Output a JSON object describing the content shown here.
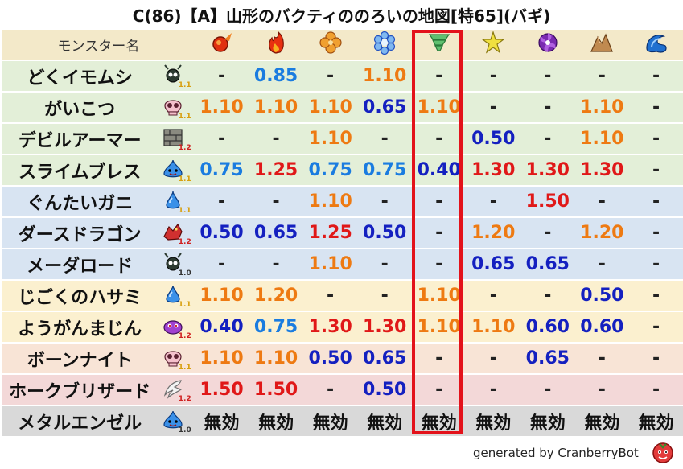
{
  "title": "C(86)【A】山形のバクティののろいの地図[特65](バギ)",
  "header": {
    "name_label": "モンスター名",
    "resistance_icons": [
      "fire-ball-icon",
      "flame-icon",
      "clover-explosion-icon",
      "ice-flower-icon",
      "tornado-icon",
      "lightning-star-icon",
      "darkness-pinwheel-icon",
      "earth-rock-icon",
      "water-wave-icon"
    ]
  },
  "colors": {
    "highlight": "#e3121b",
    "orange": "#ee7a12",
    "red": "#e01818",
    "navy": "#1420c0",
    "blue": "#1a7ce0"
  },
  "rows": [
    {
      "name": "どくイモムシ",
      "species_icon": "insect-icon",
      "level": "1.1",
      "level_color": "#d8a010",
      "bg": "#e3efd8",
      "values": [
        "-",
        "0.85",
        "-",
        "1.10",
        "-",
        "-",
        "-",
        "-",
        "-"
      ],
      "colors": [
        "dash",
        "blue",
        "dash",
        "orange",
        "dash",
        "dash",
        "dash",
        "dash",
        "dash"
      ]
    },
    {
      "name": "がいこつ",
      "species_icon": "skull-icon",
      "level": "1.1",
      "level_color": "#d8a010",
      "bg": "#e3efd8",
      "values": [
        "1.10",
        "1.10",
        "1.10",
        "0.65",
        "1.10",
        "-",
        "-",
        "1.10",
        "-"
      ],
      "colors": [
        "orange",
        "orange",
        "orange",
        "navy",
        "orange",
        "dash",
        "dash",
        "orange",
        "dash"
      ]
    },
    {
      "name": "デビルアーマー",
      "species_icon": "brick-icon",
      "level": "1.2",
      "level_color": "#d02020",
      "bg": "#e3efd8",
      "values": [
        "-",
        "-",
        "1.10",
        "-",
        "-",
        "0.50",
        "-",
        "1.10",
        "-"
      ],
      "colors": [
        "dash",
        "dash",
        "orange",
        "dash",
        "dash",
        "navy",
        "dash",
        "orange",
        "dash"
      ]
    },
    {
      "name": "スライムブレス",
      "species_icon": "slime-icon",
      "level": "1.1",
      "level_color": "#d8a010",
      "bg": "#e3efd8",
      "values": [
        "0.75",
        "1.25",
        "0.75",
        "0.75",
        "0.40",
        "1.30",
        "1.30",
        "1.30",
        "-"
      ],
      "colors": [
        "blue",
        "red",
        "blue",
        "blue",
        "navy",
        "red",
        "red",
        "red",
        "dash"
      ]
    },
    {
      "name": "ぐんたいガニ",
      "species_icon": "water-drop-icon",
      "level": "1.1",
      "level_color": "#d8a010",
      "bg": "#d8e4f2",
      "values": [
        "-",
        "-",
        "1.10",
        "-",
        "-",
        "-",
        "1.50",
        "-",
        "-"
      ],
      "colors": [
        "dash",
        "dash",
        "orange",
        "dash",
        "dash",
        "dash",
        "red",
        "dash",
        "dash"
      ]
    },
    {
      "name": "ダースドラゴン",
      "species_icon": "dragon-icon",
      "level": "1.2",
      "level_color": "#d02020",
      "bg": "#d8e4f2",
      "values": [
        "0.50",
        "0.65",
        "1.25",
        "0.50",
        "-",
        "1.20",
        "-",
        "1.20",
        "-"
      ],
      "colors": [
        "navy",
        "navy",
        "red",
        "navy",
        "dash",
        "orange",
        "dash",
        "orange",
        "dash"
      ]
    },
    {
      "name": "メーダロード",
      "species_icon": "insect-icon",
      "level": "1.0",
      "level_color": "#333333",
      "bg": "#d8e4f2",
      "values": [
        "-",
        "-",
        "1.10",
        "-",
        "-",
        "0.65",
        "0.65",
        "-",
        "-"
      ],
      "colors": [
        "dash",
        "dash",
        "orange",
        "dash",
        "dash",
        "navy",
        "navy",
        "dash",
        "dash"
      ]
    },
    {
      "name": "じごくのハサミ",
      "species_icon": "water-drop-icon",
      "level": "1.1",
      "level_color": "#d8a010",
      "bg": "#fbf0cf",
      "values": [
        "1.10",
        "1.20",
        "-",
        "-",
        "1.10",
        "-",
        "-",
        "0.50",
        "-"
      ],
      "colors": [
        "orange",
        "orange",
        "dash",
        "dash",
        "orange",
        "dash",
        "dash",
        "navy",
        "dash"
      ]
    },
    {
      "name": "ようがんまじん",
      "species_icon": "purple-blob-icon",
      "level": "1.2",
      "level_color": "#d02020",
      "bg": "#fbf0cf",
      "values": [
        "0.40",
        "0.75",
        "1.30",
        "1.30",
        "1.10",
        "1.10",
        "0.60",
        "0.60",
        "-"
      ],
      "colors": [
        "navy",
        "blue",
        "red",
        "red",
        "orange",
        "orange",
        "navy",
        "navy",
        "dash"
      ]
    },
    {
      "name": "ボーンナイト",
      "species_icon": "skull-icon",
      "level": "1.1",
      "level_color": "#d8a010",
      "bg": "#f8e4d6",
      "values": [
        "1.10",
        "1.10",
        "0.50",
        "0.65",
        "-",
        "-",
        "0.65",
        "-",
        "-"
      ],
      "colors": [
        "orange",
        "orange",
        "navy",
        "navy",
        "dash",
        "dash",
        "navy",
        "dash",
        "dash"
      ]
    },
    {
      "name": "ホークブリザード",
      "species_icon": "wing-icon",
      "level": "1.2",
      "level_color": "#d02020",
      "bg": "#f3d8d8",
      "values": [
        "1.50",
        "1.50",
        "-",
        "0.50",
        "-",
        "-",
        "-",
        "-",
        "-"
      ],
      "colors": [
        "red",
        "red",
        "dash",
        "navy",
        "dash",
        "dash",
        "dash",
        "dash",
        "dash"
      ]
    },
    {
      "name": "メタルエンゼル",
      "species_icon": "slime-icon",
      "level": "1.0",
      "level_color": "#333333",
      "bg": "#d9d9d9",
      "values": [
        "無効",
        "無効",
        "無効",
        "無効",
        "無効",
        "無効",
        "無効",
        "無効",
        "無効"
      ],
      "colors": [
        "imm",
        "imm",
        "imm",
        "imm",
        "imm",
        "imm",
        "imm",
        "imm",
        "imm"
      ]
    }
  ],
  "footer": {
    "credit": "generated by CranberryBot",
    "logo": "cranberry-logo-icon"
  }
}
